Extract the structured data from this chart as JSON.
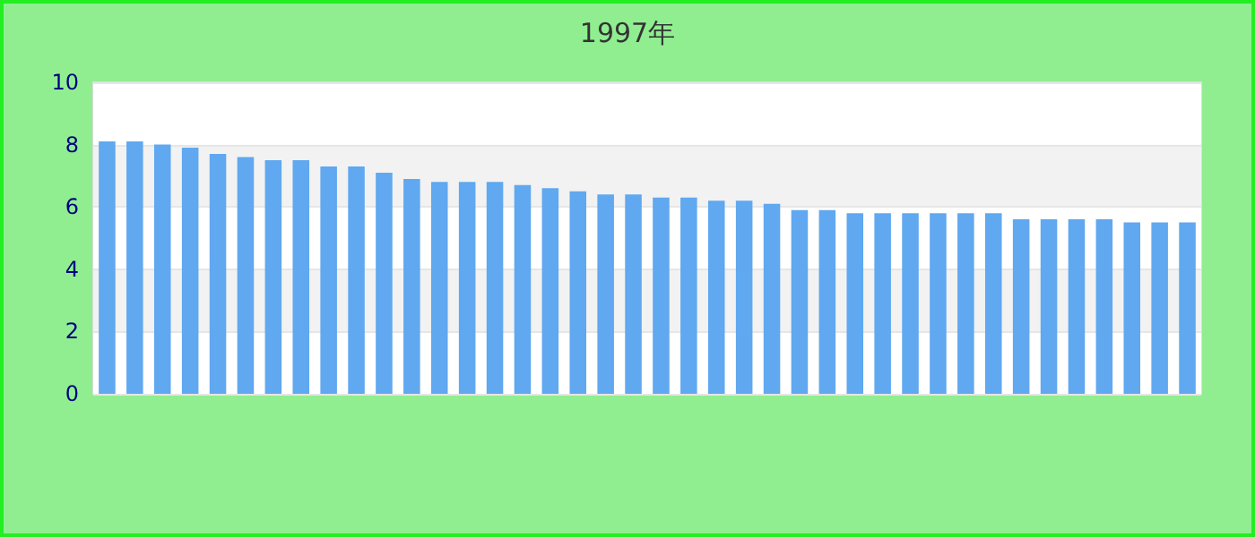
{
  "chart_data": {
    "type": "bar",
    "subtitle": "1997年",
    "categories": [
      null,
      null,
      null,
      null,
      null,
      null,
      null,
      null,
      null,
      null,
      null,
      null,
      null,
      null,
      null,
      null,
      null,
      null,
      null,
      null,
      null,
      null,
      null,
      null,
      null,
      null,
      null,
      null,
      null,
      null,
      null,
      null,
      null,
      null,
      null,
      null,
      null,
      null,
      null,
      null
    ],
    "values": [
      8.1,
      8.1,
      8.0,
      7.9,
      7.7,
      7.6,
      7.5,
      7.5,
      7.3,
      7.3,
      7.1,
      6.9,
      6.8,
      6.8,
      6.8,
      6.7,
      6.6,
      6.5,
      6.4,
      6.4,
      6.3,
      6.3,
      6.2,
      6.2,
      6.1,
      5.9,
      5.9,
      5.8,
      5.8,
      5.8,
      5.8,
      5.8,
      5.8,
      5.6,
      5.6,
      5.6,
      5.6,
      5.5,
      5.5,
      5.5
    ],
    "color": "#60a8f0",
    "ylim": [
      0,
      10
    ],
    "yticks": [
      0,
      2,
      4,
      6,
      8,
      10
    ],
    "grid": "y"
  }
}
